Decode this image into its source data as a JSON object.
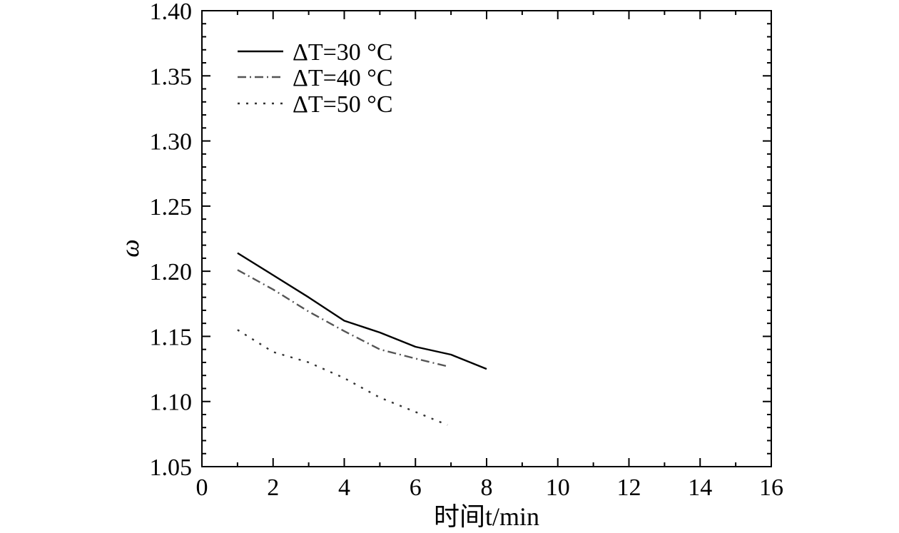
{
  "chart_data": {
    "type": "line",
    "xlabel": "时间t/min",
    "ylabel": "ω",
    "xlim": [
      0,
      16
    ],
    "ylim": [
      1.05,
      1.4
    ],
    "x_major_ticks": [
      0,
      2,
      4,
      6,
      8,
      10,
      12,
      14,
      16
    ],
    "y_major_ticks": [
      1.05,
      1.1,
      1.15,
      1.2,
      1.25,
      1.3,
      1.35,
      1.4
    ],
    "x_tick_labels": [
      "0",
      "2",
      "4",
      "6",
      "8",
      "10",
      "12",
      "14",
      "16"
    ],
    "y_tick_labels": [
      "1.05",
      "1.10",
      "1.15",
      "1.20",
      "1.25",
      "1.30",
      "1.35",
      "1.40"
    ],
    "grid": false,
    "legend_position": "top-left",
    "series": [
      {
        "name": "ΔT=30 °C",
        "style": "solid",
        "color": "#000000",
        "x": [
          1,
          2,
          3,
          4,
          5,
          6,
          7,
          8
        ],
        "y": [
          1.214,
          1.197,
          1.18,
          1.162,
          1.153,
          1.142,
          1.136,
          1.125
        ]
      },
      {
        "name": "ΔT=40 °C",
        "style": "dashdot",
        "color": "#555555",
        "x": [
          1,
          2,
          3,
          4,
          5,
          6,
          6.9
        ],
        "y": [
          1.201,
          1.186,
          1.169,
          1.154,
          1.14,
          1.133,
          1.127
        ]
      },
      {
        "name": "ΔT=50 °C",
        "style": "dotted",
        "color": "#333333",
        "x": [
          1,
          2,
          3,
          4,
          5,
          6,
          6.9
        ],
        "y": [
          1.155,
          1.138,
          1.13,
          1.118,
          1.103,
          1.092,
          1.082
        ]
      }
    ]
  }
}
